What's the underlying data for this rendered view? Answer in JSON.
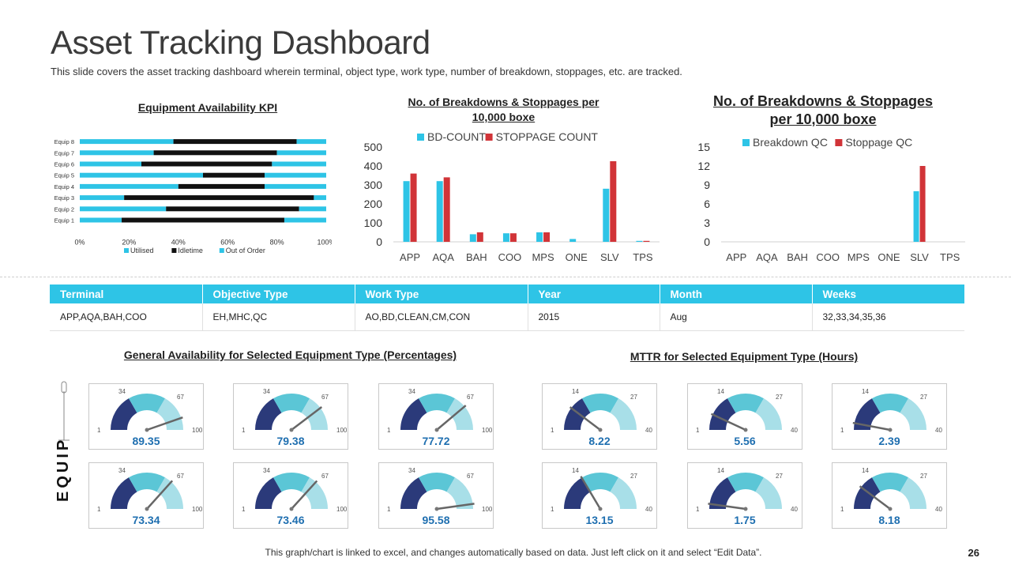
{
  "title": "Asset Tracking Dashboard",
  "subtitle": "This slide covers the asset tracking dashboard wherein terminal, object type, work type, number of breakdown, stoppages, etc. are tracked.",
  "chart_data": [
    {
      "type": "bar",
      "orientation": "horizontal",
      "stacked": true,
      "title": "Equipment Availability KPI",
      "categories": [
        "Equip 1",
        "Equip 2",
        "Equip 3",
        "Equip 4",
        "Equip 5",
        "Equip 6",
        "Equip 7",
        "Equip 8"
      ],
      "series": [
        {
          "name": "Utilised",
          "values": [
            17,
            35,
            18,
            40,
            50,
            25,
            30,
            38
          ],
          "color": "#2ec4e6"
        },
        {
          "name": "Idletime",
          "values": [
            66,
            54,
            77,
            35,
            25,
            53,
            50,
            50
          ],
          "color": "#111111"
        },
        {
          "name": "Out of Order",
          "values": [
            17,
            11,
            5,
            25,
            25,
            22,
            20,
            12
          ],
          "color": "#2ec4e6"
        }
      ],
      "xticks": [
        "0%",
        "20%",
        "40%",
        "60%",
        "80%",
        "100%"
      ],
      "xlim": [
        0,
        100
      ],
      "legend": "bottom"
    },
    {
      "type": "bar",
      "title": "No. of Breakdowns & Stoppages per 10,000 boxe",
      "categories": [
        "APP",
        "AQA",
        "BAH",
        "COO",
        "MPS",
        "ONE",
        "SLV",
        "TPS"
      ],
      "series": [
        {
          "name": "BD-COUNT",
          "values": [
            320,
            320,
            40,
            45,
            50,
            15,
            280,
            5
          ],
          "color": "#2ec4e6"
        },
        {
          "name": "STOPPAGE COUNT",
          "values": [
            360,
            340,
            50,
            45,
            50,
            0,
            425,
            5
          ],
          "color": "#d13438"
        }
      ],
      "yticks": [
        "0",
        "100",
        "200",
        "300",
        "400",
        "500"
      ],
      "ylim": [
        0,
        500
      ],
      "legend": "top"
    },
    {
      "type": "bar",
      "title": "No. of Breakdowns & Stoppages per 10,000 boxe",
      "categories": [
        "APP",
        "AQA",
        "BAH",
        "COO",
        "MPS",
        "ONE",
        "SLV",
        "TPS"
      ],
      "series": [
        {
          "name": "Breakdown QC",
          "values": [
            0,
            0,
            0,
            0,
            0,
            0,
            8,
            0
          ],
          "color": "#2ec4e6"
        },
        {
          "name": "Stoppage QC",
          "values": [
            0,
            0,
            0,
            0,
            0,
            0,
            12,
            0
          ],
          "color": "#d13438"
        }
      ],
      "yticks": [
        "0",
        "3",
        "6",
        "9",
        "12",
        "15"
      ],
      "ylim": [
        0,
        15
      ],
      "legend": "top"
    }
  ],
  "table": {
    "headers": [
      "Terminal",
      "Objective Type",
      "Work Type",
      "Year",
      "Month",
      "Weeks"
    ],
    "row": [
      "APP,AQA,BAH,COO",
      "EH,MHC,QC",
      "AO,BD,CLEAN,CM,CON",
      "2015",
      "Aug",
      "32,33,34,35,36"
    ]
  },
  "availability": {
    "title": "General Availability for Selected Equipment Type (Percentages)",
    "labels": {
      "min": "1",
      "a": "34",
      "b": "67",
      "max": "100"
    },
    "max": 100,
    "values": [
      89.35,
      79.38,
      77.72,
      73.34,
      73.46,
      95.58
    ]
  },
  "mttr": {
    "title": "MTTR for Selected Equipment Type (Hours)",
    "labels": {
      "min": "1",
      "a": "14",
      "b": "27",
      "max": "40"
    },
    "max": 40,
    "values": [
      8.22,
      5.56,
      2.39,
      13.15,
      1.75,
      8.18
    ]
  },
  "equip_label": "EQUIP",
  "footer": "This graph/chart is linked to excel, and changes automatically based on data. Just left click on it and select “Edit Data”.",
  "page_number": "26",
  "colors": {
    "accent": "#2ec4e6",
    "red": "#d13438",
    "gauge_dark": "#2b3a7a",
    "gauge_mid": "#5bc6d6",
    "gauge_light": "#a8dfe8",
    "value_text": "#1f6fb0"
  }
}
